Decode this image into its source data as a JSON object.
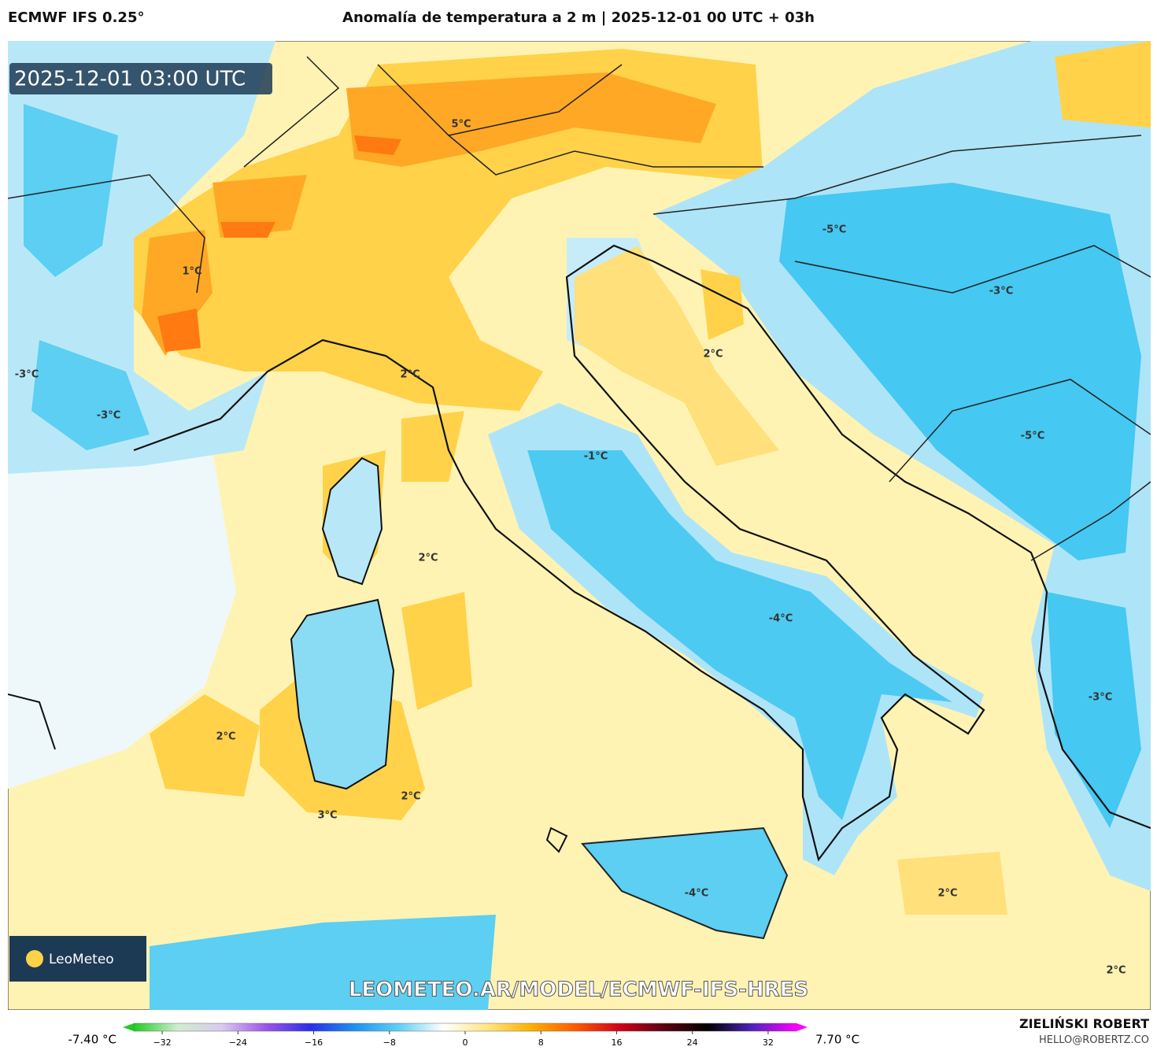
{
  "header": {
    "model": "ECMWF IFS 0.25°",
    "title": "Anomalía de temperatura a 2 m | 2025-12-01 00 UTC + 03h"
  },
  "map": {
    "timestamp": "2025-12-01 03:00 UTC",
    "labels": [
      "5°C",
      "1°C",
      "-3°C",
      "-3°C",
      "2°C",
      "2°C",
      "-1°C",
      "-5°C",
      "-3°C",
      "-5°C",
      "2°C",
      "2°C",
      "3°C",
      "2°C",
      "-4°C",
      "-3°C",
      "-4°C",
      "2°C",
      "2°C"
    ],
    "watermark": "LEOMETEO.AR/MODEL/ECMWF-IFS-HRES",
    "logo": "LeoMeteo"
  },
  "colorbar": {
    "min_label": "-7.40 °C",
    "max_label": "7.70 °C",
    "range": [
      -35,
      35
    ],
    "colors": [
      "#22cc22",
      "#cfeecf",
      "#d9c9f0",
      "#9a55e6",
      "#2a2ee8",
      "#1e90f0",
      "#5fd0f5",
      "#ffffff",
      "#ffe680",
      "#ffb000",
      "#ff5a00",
      "#d0001a",
      "#5a0010",
      "#000000",
      "#5020c0",
      "#ff00ff"
    ],
    "ticks": [
      {
        "value": -32,
        "label": "−32"
      },
      {
        "value": -24,
        "label": "−24"
      },
      {
        "value": -16,
        "label": "−16"
      },
      {
        "value": -8,
        "label": "−8"
      },
      0,
      8,
      16,
      24,
      32
    ]
  },
  "footer": {
    "author": "ZIELIŃSKI ROBERT",
    "email": "HELLO@ROBERTZ.CO"
  }
}
